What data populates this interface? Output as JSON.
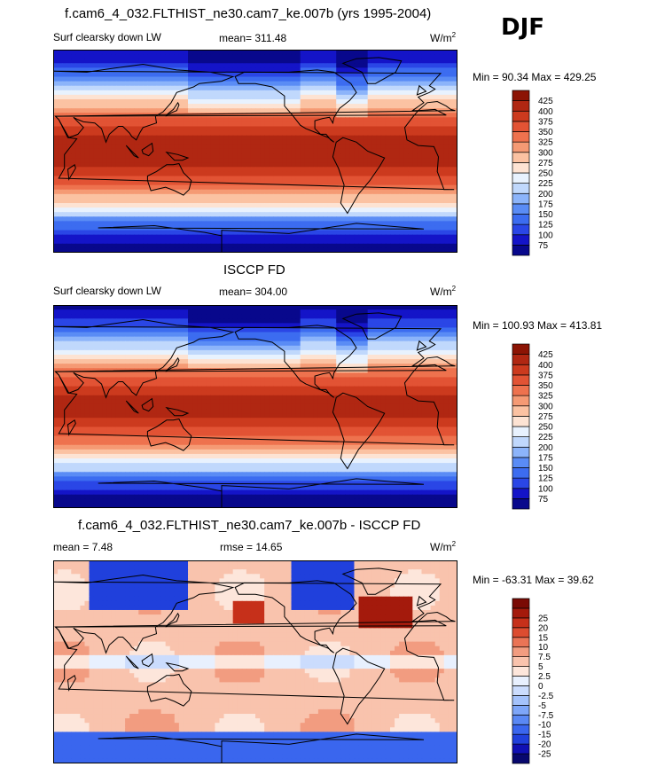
{
  "header": {
    "season": "DJF"
  },
  "palettes": {
    "full": [
      "#08088c",
      "#1414c8",
      "#2a46e6",
      "#3c6cf0",
      "#5a8cf5",
      "#8cb4fa",
      "#c0d8fc",
      "#e8f2fe",
      "#fde3d3",
      "#fbc2a2",
      "#f59a74",
      "#ee724e",
      "#e25334",
      "#cc3a1e",
      "#b02712",
      "#8c1404"
    ],
    "diff": [
      "#08086e",
      "#1010b4",
      "#2040dc",
      "#3a66ee",
      "#5a88f4",
      "#7ea6f8",
      "#a4c2fb",
      "#cbdcfd",
      "#e8f0fe",
      "#fde6db",
      "#f9c3ad",
      "#f29c80",
      "#ea7456",
      "#dc4c30",
      "#c6301a",
      "#a41a0c",
      "#7a0a04"
    ]
  },
  "chart_data": [
    {
      "type": "heatmap",
      "id": "model",
      "title": "f.cam6_4_032.FLTHIST_ne30.cam7_ke.007b (yrs 1995-2004)",
      "variable": "Surf clearsky down LW",
      "stat_label": "mean= 311.48",
      "units_base": "W/m",
      "units_exp": "2",
      "min": 90.34,
      "max": 429.25,
      "minmax_label": "Min =  90.34 Max = 429.25",
      "levels": [
        "75",
        "100",
        "125",
        "150",
        "175",
        "200",
        "225",
        "250",
        "275",
        "300",
        "325",
        "350",
        "375",
        "400",
        "425"
      ],
      "palette": "full",
      "field": "abs",
      "warm": 0
    },
    {
      "type": "heatmap",
      "id": "obs",
      "title": "ISCCP FD",
      "variable": "Surf clearsky down LW",
      "stat_label": "mean= 304.00",
      "units_base": "W/m",
      "units_exp": "2",
      "min": 100.93,
      "max": 413.81,
      "minmax_label": "Min = 100.93 Max = 413.81",
      "levels": [
        "75",
        "100",
        "125",
        "150",
        "175",
        "200",
        "225",
        "250",
        "275",
        "300",
        "325",
        "350",
        "375",
        "400",
        "425"
      ],
      "palette": "full",
      "field": "abs",
      "warm": -0.02
    },
    {
      "type": "heatmap",
      "id": "diff",
      "title": "f.cam6_4_032.FLTHIST_ne30.cam7_ke.007b - ISCCP FD",
      "mean_label": "mean =   7.48",
      "rmse_label": "rmse =  14.65",
      "units_base": "W/m",
      "units_exp": "2",
      "min": -63.31,
      "max": 39.62,
      "minmax_label": "Min = -63.31 Max =  39.62",
      "levels": [
        "-25",
        "-20",
        "-15",
        "-10",
        "-7.5",
        "-5",
        "-2.5",
        "0",
        "2.5",
        "5",
        "7.5",
        "10",
        "15",
        "20",
        "25"
      ],
      "palette": "diff",
      "field": "diff",
      "warm": 0
    }
  ]
}
